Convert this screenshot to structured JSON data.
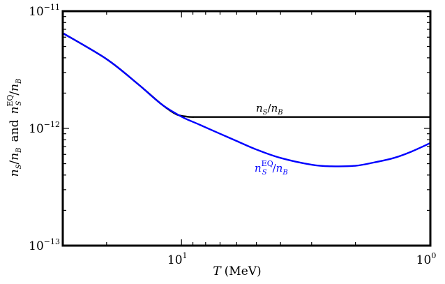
{
  "chart_data": {
    "type": "line",
    "title": "",
    "xlabel": {
      "var": "T",
      "unit": "(MeV)"
    },
    "ylabel": {
      "n1": "n",
      "s1": "S",
      "slash1": "/",
      "n2": "n",
      "s2": "B",
      "and": "and",
      "n3": "n",
      "s3": "S",
      "eq": "EQ",
      "slash2": "/",
      "n4": "n",
      "s4": "B"
    },
    "x_scale": "log",
    "y_scale": "log",
    "x_reversed": true,
    "xlim": [
      30,
      1
    ],
    "ylim": [
      1e-13,
      1e-11
    ],
    "x_ticks": [
      {
        "value": 10,
        "base": "10",
        "exp": "1"
      },
      {
        "value": 1,
        "base": "10",
        "exp": "0"
      }
    ],
    "y_ticks": [
      {
        "value": 1e-11,
        "base": "10",
        "exp": "−11"
      },
      {
        "value": 1e-12,
        "base": "10",
        "exp": "−12"
      },
      {
        "value": 1e-13,
        "base": "10",
        "exp": "−13"
      }
    ],
    "series": [
      {
        "label_base": "n",
        "label_sub": "S",
        "label_slash": "/",
        "label_den": "n",
        "label_den_sub": "B",
        "color": "#000000",
        "x": [
          30,
          20,
          15,
          12,
          10.5,
          9.5,
          9,
          8.5,
          5,
          2,
          1
        ],
        "y": [
          6.5e-12,
          3.9e-12,
          2.4e-12,
          1.6e-12,
          1.32e-12,
          1.26e-12,
          1.25e-12,
          1.25e-12,
          1.25e-12,
          1.25e-12,
          1.25e-12
        ]
      },
      {
        "label_base": "n",
        "label_sub": "S",
        "label_sup": "EQ",
        "label_slash": "/",
        "label_den": "n",
        "label_den_sub": "B",
        "color": "#0000ff",
        "x": [
          30,
          20,
          15,
          12,
          10,
          8.5,
          7,
          6,
          5,
          4,
          3,
          2.5,
          2,
          1.7,
          1.4,
          1.2,
          1
        ],
        "y": [
          6.5e-12,
          3.9e-12,
          2.4e-12,
          1.6e-12,
          1.26e-12,
          1.08e-12,
          9e-13,
          7.8e-13,
          6.6e-13,
          5.6e-13,
          4.9e-13,
          4.75e-13,
          4.8e-13,
          5.1e-13,
          5.6e-13,
          6.3e-13,
          7.5e-13
        ]
      }
    ]
  }
}
